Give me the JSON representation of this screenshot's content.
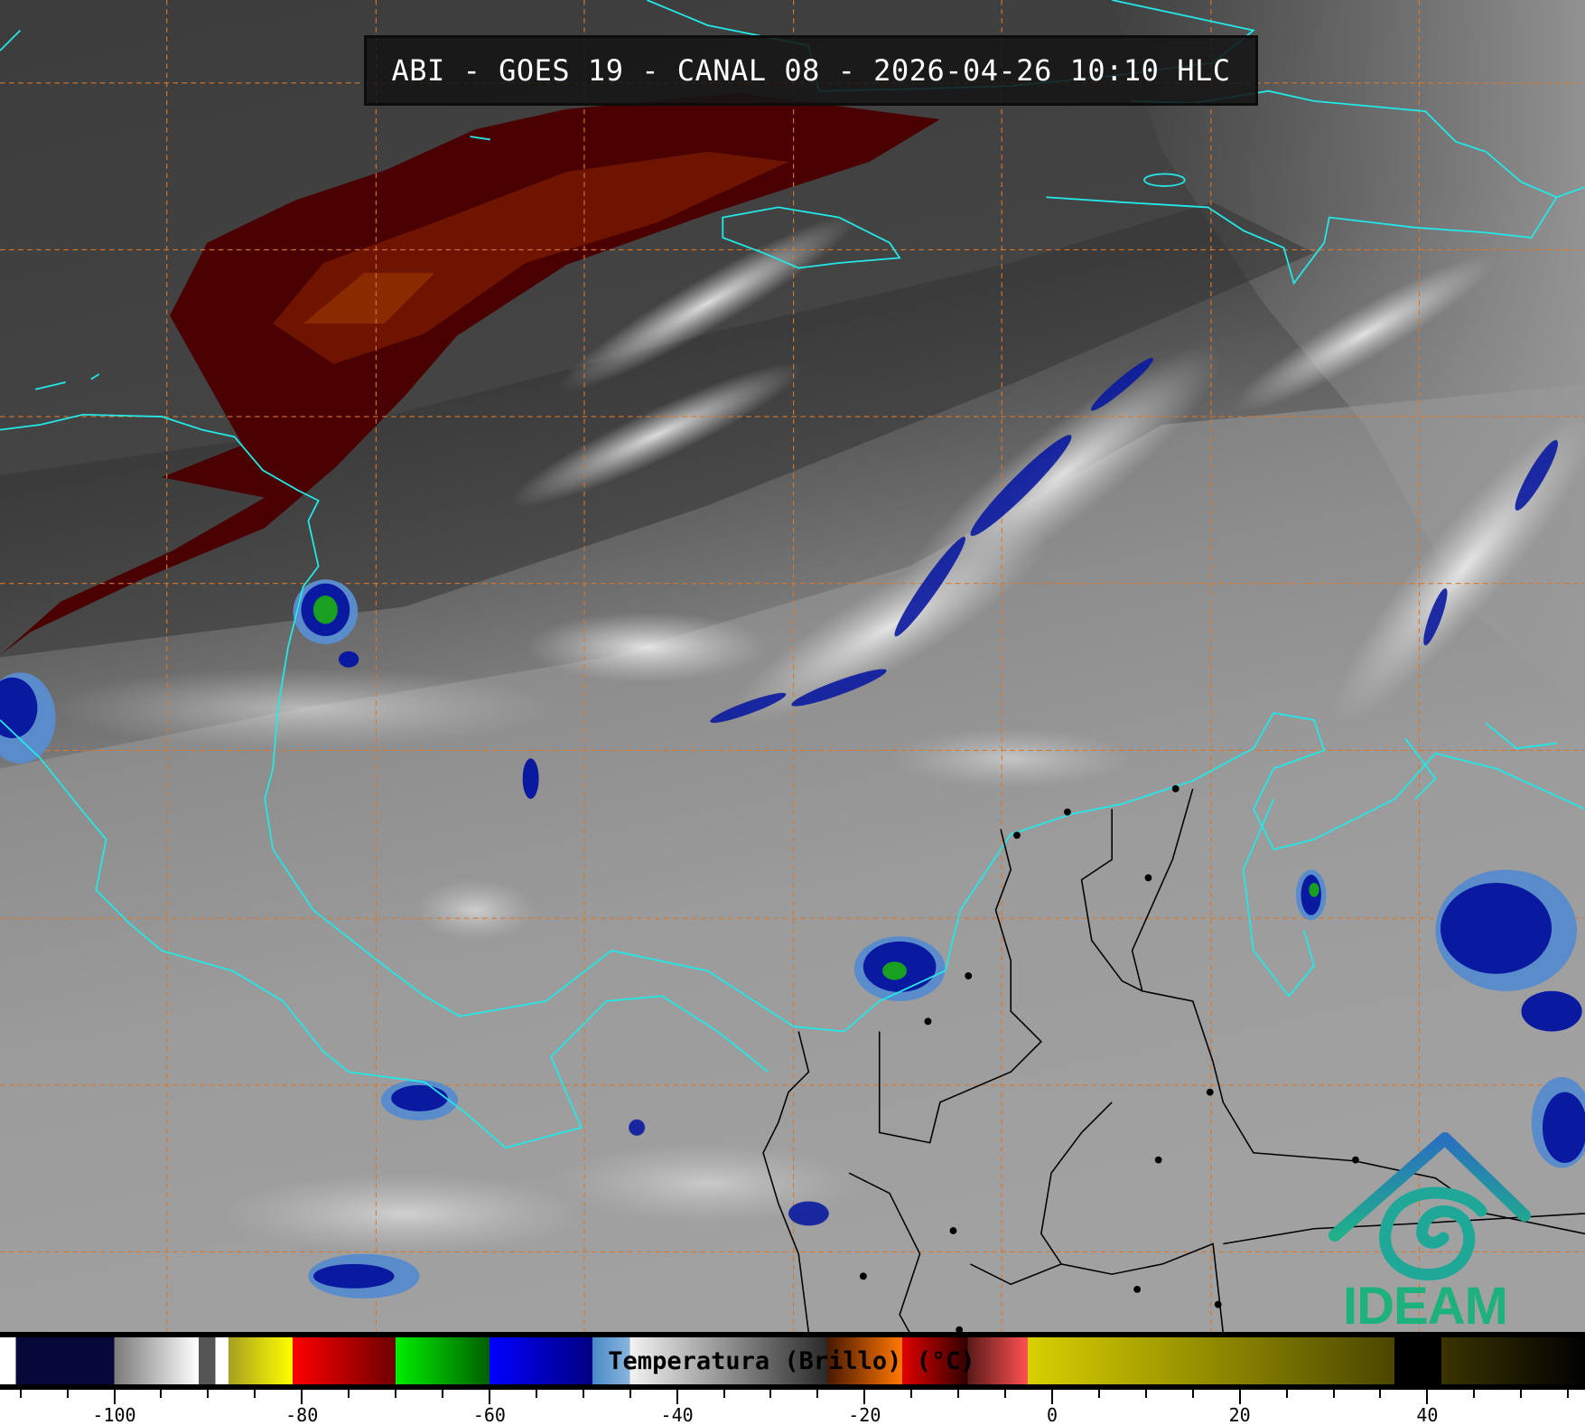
{
  "title": "ABI - GOES 19 - CANAL 08 - 2026-04-26 10:10 HLC",
  "logo": {
    "text": "IDEAM",
    "color": "#1db27c",
    "roof_color": "#2a7fbf",
    "spiral_color": "#1fa898"
  },
  "colorbar": {
    "label": "Temperatura (Brillo) (°C)",
    "range": [
      -112,
      57
    ],
    "ticks": [
      -100,
      -80,
      -60,
      -40,
      -20,
      0,
      20,
      40
    ],
    "tick_labels": [
      "-100",
      "-80",
      "-60",
      "-40",
      "-20",
      "0",
      "20",
      "40"
    ],
    "minor_step": 5,
    "segments": [
      {
        "from": -112,
        "to": -110.5,
        "c1": "#ffffff",
        "c2": "#ffffff"
      },
      {
        "from": -110.5,
        "to": -100,
        "c1": "#050838",
        "c2": "#050838"
      },
      {
        "from": -100,
        "to": -91,
        "c1": "#7a7a7a",
        "c2": "#ffffff"
      },
      {
        "from": -91,
        "to": -89.2,
        "c1": "#555555",
        "c2": "#555555"
      },
      {
        "from": -89.2,
        "to": -87.8,
        "c1": "#ffffff",
        "c2": "#ffffff"
      },
      {
        "from": -87.8,
        "to": -81,
        "c1": "#a8a020",
        "c2": "#ffff00"
      },
      {
        "from": -81,
        "to": -70,
        "c1": "#ff0000",
        "c2": "#6e0000"
      },
      {
        "from": -70,
        "to": -60,
        "c1": "#00ee00",
        "c2": "#006000"
      },
      {
        "from": -60,
        "to": -49,
        "c1": "#0000ff",
        "c2": "#000080"
      },
      {
        "from": -49,
        "to": -45,
        "c1": "#4a8ac8",
        "c2": "#8ab4dc"
      },
      {
        "from": -45,
        "to": -24,
        "c1": "#f2f2f2",
        "c2": "#2a2a2a"
      },
      {
        "from": -24,
        "to": -16,
        "c1": "#4a1800",
        "c2": "#ff7800"
      },
      {
        "from": -16,
        "to": -9,
        "c1": "#e00000",
        "c2": "#300000"
      },
      {
        "from": -9,
        "to": -2.6,
        "c1": "#5a1a1a",
        "c2": "#ff5050"
      },
      {
        "from": -2.6,
        "to": 36.5,
        "c1": "#d8d000",
        "c2": "#4a4600"
      },
      {
        "from": 36.5,
        "to": 41.5,
        "c1": "#000000",
        "c2": "#000000"
      },
      {
        "from": 41.5,
        "to": 57,
        "c1": "#3a3400",
        "c2": "#000000"
      }
    ]
  },
  "map": {
    "coastline_color": "#22e8e8",
    "border_color": "#000000",
    "grid_color": "#d8782a",
    "cold_cloud_color": "#0a1aa0",
    "coldest_cloud_color": "#1aa020"
  }
}
